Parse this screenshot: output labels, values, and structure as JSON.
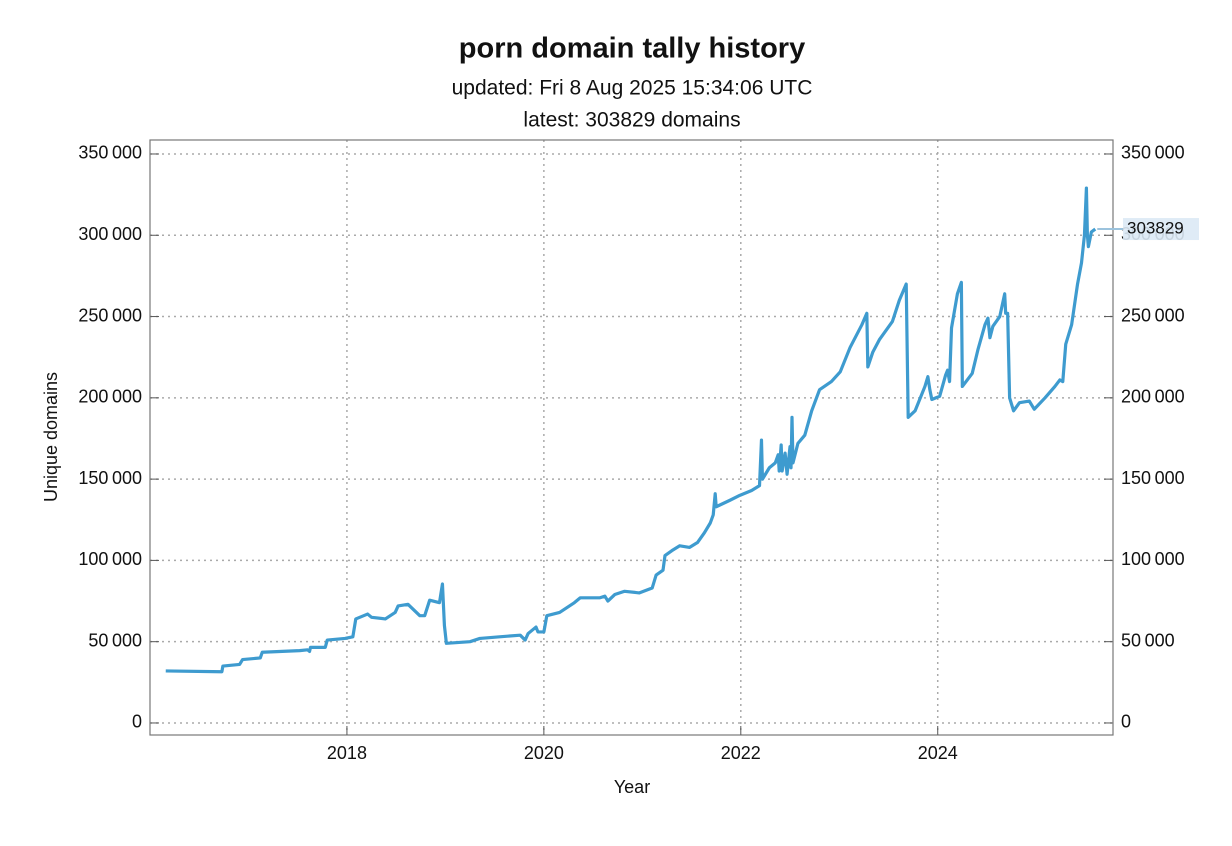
{
  "chart_data": {
    "type": "line",
    "title": "porn domain tally history",
    "subtitle": "updated: Fri 8 Aug 2025 15:34:06 UTC",
    "annotation": "latest: 303829 domains",
    "x_label": "Year",
    "y_label": "Unique domains",
    "color": "#3e9bcf",
    "grid": true,
    "xlim": [
      2016.0,
      2025.78
    ],
    "ylim": [
      -7400,
      358600
    ],
    "xticks": [
      2018,
      2020,
      2022,
      2024
    ],
    "yticks": [
      0,
      {
        "value": 50000,
        "label": "50 000"
      },
      {
        "value": 100000,
        "label": "100 000"
      },
      {
        "value": 150000,
        "label": "150 000"
      },
      {
        "value": 200000,
        "label": "200 000"
      },
      {
        "value": 250000,
        "label": "250 000"
      },
      {
        "value": 300000,
        "label": "300 000"
      },
      {
        "value": 350000,
        "label": "350 000"
      }
    ],
    "x": [
      2016.16,
      2016.73,
      2016.74,
      2016.91,
      2016.94,
      2017.12,
      2017.14,
      2017.52,
      2017.6,
      2017.62,
      2017.63,
      2017.78,
      2017.8,
      2017.98,
      2018.06,
      2018.09,
      2018.21,
      2018.25,
      2018.39,
      2018.49,
      2018.52,
      2018.62,
      2018.74,
      2018.79,
      2018.84,
      2018.94,
      2018.97,
      2018.99,
      2019.01,
      2019.25,
      2019.35,
      2019.55,
      2019.76,
      2019.81,
      2019.84,
      2019.88,
      2019.92,
      2019.94,
      2020.0,
      2020.03,
      2020.16,
      2020.31,
      2020.37,
      2020.57,
      2020.62,
      2020.65,
      2020.72,
      2020.82,
      2020.97,
      2021.1,
      2021.14,
      2021.21,
      2021.23,
      2021.3,
      2021.38,
      2021.48,
      2021.56,
      2021.63,
      2021.69,
      2021.72,
      2021.74,
      2021.75,
      2021.89,
      2021.99,
      2022.11,
      2022.19,
      2022.21,
      2022.22,
      2022.29,
      2022.35,
      2022.38,
      2022.39,
      2022.41,
      2022.42,
      2022.45,
      2022.47,
      2022.5,
      2022.51,
      2022.52,
      2022.53,
      2022.58,
      2022.65,
      2022.72,
      2022.8,
      2022.92,
      2023.01,
      2023.11,
      2023.23,
      2023.28,
      2023.29,
      2023.34,
      2023.41,
      2023.54,
      2023.61,
      2023.68,
      2023.7,
      2023.77,
      2023.87,
      2023.9,
      2023.92,
      2023.94,
      2024.02,
      2024.08,
      2024.1,
      2024.12,
      2024.14,
      2024.2,
      2024.24,
      2024.25,
      2024.35,
      2024.41,
      2024.48,
      2024.51,
      2024.53,
      2024.56,
      2024.63,
      2024.68,
      2024.69,
      2024.71,
      2024.73,
      2024.77,
      2024.83,
      2024.93,
      2024.98,
      2025.09,
      2025.19,
      2025.24,
      2025.27,
      2025.3,
      2025.36,
      2025.42,
      2025.46,
      2025.49,
      2025.51,
      2025.52,
      2025.53,
      2025.56,
      2025.6
    ],
    "values": [
      32000,
      31500,
      35000,
      36000,
      39000,
      40000,
      43500,
      44500,
      45000,
      44000,
      46500,
      46500,
      51000,
      52000,
      53000,
      64000,
      67000,
      65000,
      64000,
      68000,
      72000,
      73000,
      66000,
      66000,
      75500,
      74000,
      85500,
      60000,
      49000,
      50000,
      52000,
      53000,
      54000,
      51000,
      55000,
      57000,
      59000,
      56000,
      56000,
      66000,
      68000,
      74000,
      77000,
      77000,
      78000,
      75000,
      79000,
      81000,
      80000,
      83000,
      91000,
      94000,
      103000,
      106000,
      109000,
      108000,
      111000,
      117000,
      123000,
      128000,
      141000,
      133000,
      137000,
      140000,
      143000,
      146000,
      174000,
      150000,
      157000,
      160000,
      165000,
      155000,
      171000,
      155000,
      166000,
      153000,
      170000,
      157000,
      188000,
      160000,
      172000,
      177000,
      192000,
      205000,
      210000,
      216000,
      231000,
      245000,
      252000,
      219000,
      228000,
      236000,
      247000,
      260000,
      270000,
      188000,
      192000,
      207000,
      213000,
      205000,
      199000,
      201000,
      214000,
      217000,
      210000,
      243000,
      264000,
      271000,
      207000,
      215000,
      230000,
      245000,
      249000,
      237000,
      244000,
      250000,
      264000,
      252000,
      252000,
      200000,
      192000,
      197000,
      198000,
      193000,
      200000,
      207000,
      211000,
      210000,
      233000,
      245000,
      270000,
      283000,
      300000,
      329000,
      300000,
      293000,
      302000,
      303829
    ]
  }
}
